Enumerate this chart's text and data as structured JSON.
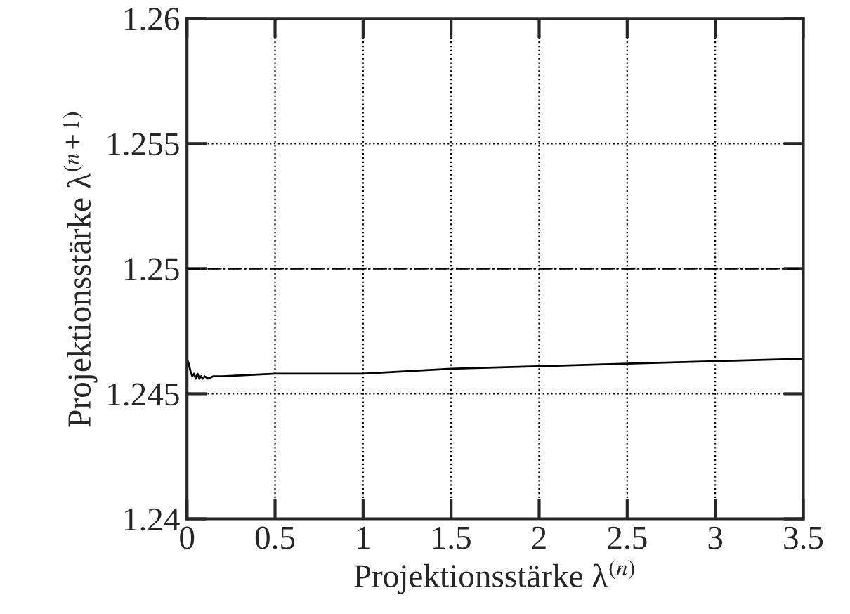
{
  "chart_data": {
    "type": "line",
    "xlabel": "Projektionsstärke λ$^{(n)}$",
    "ylabel": "Projektionsstärke λ$^{(n+1)}$",
    "series": [
      {
        "color": "#000000",
        "x": [
          0.0,
          0.01,
          0.02,
          0.03,
          0.04,
          0.05,
          0.06,
          0.07,
          0.08,
          0.09,
          0.1,
          0.12,
          0.15,
          0.2,
          0.5,
          1.0,
          1.5,
          2.0,
          2.5,
          3.0,
          3.5
        ],
        "values": [
          1.2464,
          1.2462,
          1.2459,
          1.2457,
          1.2458,
          1.2456,
          1.2458,
          1.2456,
          1.2457,
          1.2456,
          1.2457,
          1.2456,
          1.2457,
          1.2457,
          1.2458,
          1.2458,
          1.246,
          1.2461,
          1.2462,
          1.2463,
          1.2464
        ]
      }
    ],
    "ref_lines": [
      {
        "axis": "y",
        "value": 1.25,
        "color": "#000000",
        "line_style": "dashdot"
      }
    ],
    "xlim": [
      0,
      3.5
    ],
    "xticks": [
      0,
      0.5,
      1,
      1.5,
      2,
      2.5,
      3,
      3.5
    ],
    "ylim": [
      1.24,
      1.26
    ],
    "yticks": [
      1.24,
      1.245,
      1.25,
      1.255,
      1.26
    ],
    "grid": true,
    "legend": false,
    "marker": "none",
    "line_style": "solid"
  }
}
